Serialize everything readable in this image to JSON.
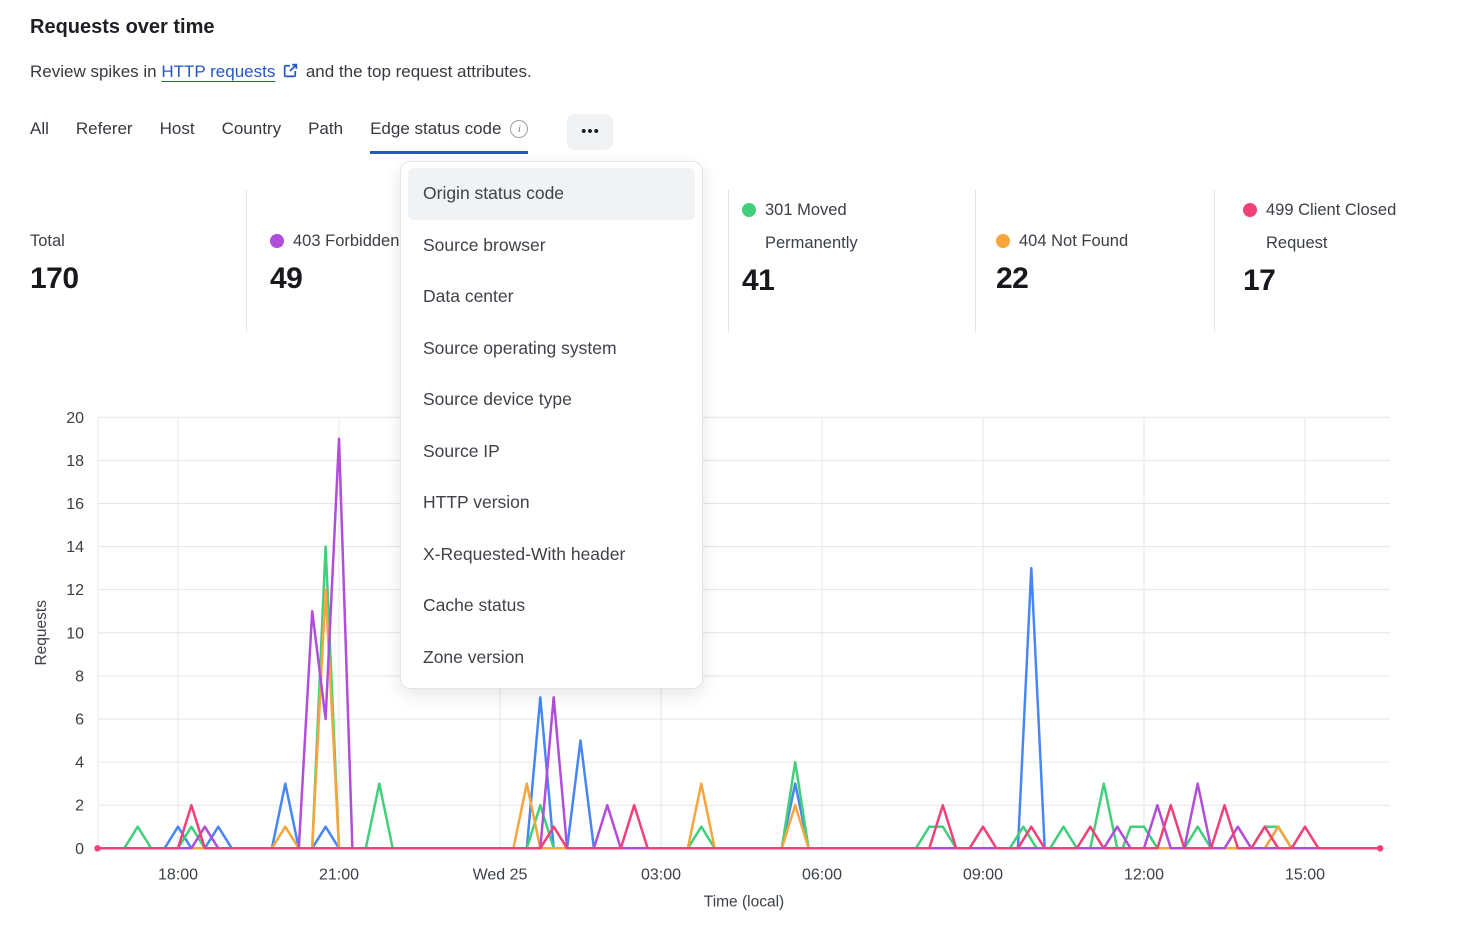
{
  "header": {
    "title": "Requests over time",
    "subtitle_prefix": "Review spikes in",
    "link_text": "HTTP requests",
    "subtitle_suffix": "and the top request attributes."
  },
  "icons": {
    "info": "i",
    "more": "•••",
    "external_link": "external-link"
  },
  "tabs": {
    "items": [
      {
        "label": "All",
        "active": false
      },
      {
        "label": "Referer",
        "active": false
      },
      {
        "label": "Host",
        "active": false
      },
      {
        "label": "Country",
        "active": false
      },
      {
        "label": "Path",
        "active": false
      },
      {
        "label": "Edge status code",
        "active": true
      }
    ]
  },
  "dropdown": {
    "highlighted_index": 0,
    "items": [
      "Origin status code",
      "Source browser",
      "Data center",
      "Source operating system",
      "Source device type",
      "Source IP",
      "HTTP version",
      "X-Requested-With header",
      "Cache status",
      "Zone version"
    ]
  },
  "stats": {
    "total": {
      "label": "Total",
      "value": "170"
    },
    "items": [
      {
        "label": "403 Forbidden",
        "value": "49",
        "color": "#b14ddb"
      },
      {
        "label": "301 Moved Permanently",
        "value": "41",
        "color": "#41cf7c"
      },
      {
        "label": "404 Not Found",
        "value": "22",
        "color": "#f7a53d"
      },
      {
        "label": "499 Client Closed Request",
        "value": "17",
        "color": "#ef4277"
      }
    ]
  },
  "chart_data": {
    "type": "line",
    "title": "Requests over time",
    "xlabel": "Time (local)",
    "ylabel": "Requests",
    "ylim": [
      0,
      20
    ],
    "y_tick_step": 2,
    "grid": true,
    "legend_position": "top-stats-row",
    "x_unit": "hours since Tue 00:00; 24+ = Wed 25",
    "x_domain": [
      16.55,
      40.35
    ],
    "x_ticks": [
      {
        "t": 18,
        "label": "18:00"
      },
      {
        "t": 21,
        "label": "21:00"
      },
      {
        "t": 24,
        "label": "Wed 25"
      },
      {
        "t": 27,
        "label": "03:00"
      },
      {
        "t": 30,
        "label": "06:00"
      },
      {
        "t": 33,
        "label": "09:00"
      },
      {
        "t": 36,
        "label": "12:00"
      },
      {
        "t": 39,
        "label": "15:00"
      }
    ],
    "series": [
      {
        "name": "blue-hidden",
        "label": "",
        "color": "#4787f3",
        "points": [
          [
            16.55,
            0
          ],
          [
            17.75,
            0
          ],
          [
            18,
            1
          ],
          [
            18.25,
            0
          ],
          [
            18.5,
            0
          ],
          [
            18.75,
            1
          ],
          [
            19,
            0
          ],
          [
            19.75,
            0
          ],
          [
            20,
            3
          ],
          [
            20.25,
            0
          ],
          [
            20.5,
            0
          ],
          [
            20.75,
            1
          ],
          [
            21,
            0
          ],
          [
            24.5,
            0
          ],
          [
            24.75,
            7
          ],
          [
            25,
            0
          ],
          [
            25.25,
            0
          ],
          [
            25.5,
            5
          ],
          [
            25.75,
            0
          ],
          [
            29.25,
            0
          ],
          [
            29.5,
            3
          ],
          [
            29.75,
            0
          ],
          [
            33.65,
            0
          ],
          [
            33.9,
            13
          ],
          [
            34.15,
            0
          ],
          [
            38.25,
            0
          ],
          [
            38.5,
            1
          ],
          [
            38.75,
            0
          ],
          [
            40.35,
            0
          ]
        ]
      },
      {
        "name": "301",
        "label": "301 Moved Permanently",
        "color": "#41cf7c",
        "points": [
          [
            16.55,
            0
          ],
          [
            17,
            0
          ],
          [
            17.25,
            1
          ],
          [
            17.5,
            0
          ],
          [
            18,
            0
          ],
          [
            18.25,
            1
          ],
          [
            18.5,
            0
          ],
          [
            20.5,
            0
          ],
          [
            20.75,
            14
          ],
          [
            21,
            0
          ],
          [
            21.5,
            0
          ],
          [
            21.75,
            3
          ],
          [
            22,
            0
          ],
          [
            24.5,
            0
          ],
          [
            24.75,
            2
          ],
          [
            25,
            0
          ],
          [
            27.5,
            0
          ],
          [
            27.75,
            1
          ],
          [
            28,
            0
          ],
          [
            29.25,
            0
          ],
          [
            29.5,
            4
          ],
          [
            29.75,
            0
          ],
          [
            31.75,
            0
          ],
          [
            32,
            1
          ],
          [
            32.25,
            1
          ],
          [
            32.5,
            0
          ],
          [
            33.5,
            0
          ],
          [
            33.75,
            1
          ],
          [
            34,
            0
          ],
          [
            34.25,
            0
          ],
          [
            34.5,
            1
          ],
          [
            34.75,
            0
          ],
          [
            35,
            0
          ],
          [
            35.25,
            3
          ],
          [
            35.5,
            0
          ],
          [
            35.6,
            0
          ],
          [
            35.75,
            1
          ],
          [
            36,
            1
          ],
          [
            36.25,
            0
          ],
          [
            36.75,
            0
          ],
          [
            37,
            1
          ],
          [
            37.25,
            0
          ],
          [
            38,
            0
          ],
          [
            38.25,
            1
          ],
          [
            38.5,
            1
          ],
          [
            38.75,
            0
          ],
          [
            40.35,
            0
          ]
        ]
      },
      {
        "name": "404",
        "label": "404 Not Found",
        "color": "#f7a53d",
        "points": [
          [
            16.55,
            0
          ],
          [
            19.75,
            0
          ],
          [
            20,
            1
          ],
          [
            20.25,
            0
          ],
          [
            20.5,
            0
          ],
          [
            20.75,
            12
          ],
          [
            21,
            0
          ],
          [
            24.25,
            0
          ],
          [
            24.5,
            3
          ],
          [
            24.75,
            0
          ],
          [
            27.5,
            0
          ],
          [
            27.75,
            3
          ],
          [
            28,
            0
          ],
          [
            29.25,
            0
          ],
          [
            29.5,
            2
          ],
          [
            29.75,
            0
          ],
          [
            38.25,
            0
          ],
          [
            38.5,
            1
          ],
          [
            38.75,
            0
          ],
          [
            40.35,
            0
          ]
        ]
      },
      {
        "name": "403",
        "label": "403 Forbidden",
        "color": "#b14ddb",
        "points": [
          [
            16.55,
            0
          ],
          [
            18.25,
            0
          ],
          [
            18.5,
            1
          ],
          [
            18.75,
            0
          ],
          [
            20.25,
            0
          ],
          [
            20.5,
            11
          ],
          [
            20.75,
            6
          ],
          [
            21,
            19
          ],
          [
            21.25,
            0
          ],
          [
            24.75,
            0
          ],
          [
            25,
            7
          ],
          [
            25.25,
            0
          ],
          [
            25.75,
            0
          ],
          [
            26,
            2
          ],
          [
            26.25,
            0
          ],
          [
            35.25,
            0
          ],
          [
            35.5,
            1
          ],
          [
            35.75,
            0
          ],
          [
            36,
            0
          ],
          [
            36.25,
            2
          ],
          [
            36.5,
            0
          ],
          [
            36.75,
            0
          ],
          [
            37,
            3
          ],
          [
            37.25,
            0
          ],
          [
            37.5,
            0
          ],
          [
            37.75,
            1
          ],
          [
            38,
            0
          ],
          [
            40.35,
            0
          ]
        ]
      },
      {
        "name": "499",
        "label": "499 Client Closed Request",
        "color": "#ef4277",
        "points": [
          [
            16.55,
            0
          ],
          [
            18,
            0
          ],
          [
            18.25,
            2
          ],
          [
            18.5,
            0
          ],
          [
            24.75,
            0
          ],
          [
            25,
            1
          ],
          [
            25.25,
            0
          ],
          [
            26.25,
            0
          ],
          [
            26.5,
            2
          ],
          [
            26.75,
            0
          ],
          [
            32,
            0
          ],
          [
            32.25,
            2
          ],
          [
            32.5,
            0
          ],
          [
            32.75,
            0
          ],
          [
            33,
            1
          ],
          [
            33.25,
            0
          ],
          [
            33.65,
            0
          ],
          [
            33.9,
            1
          ],
          [
            34.15,
            0
          ],
          [
            34.75,
            0
          ],
          [
            35,
            1
          ],
          [
            35.25,
            0
          ],
          [
            36.25,
            0
          ],
          [
            36.5,
            2
          ],
          [
            36.75,
            0
          ],
          [
            37.25,
            0
          ],
          [
            37.5,
            2
          ],
          [
            37.75,
            0
          ],
          [
            38,
            0
          ],
          [
            38.25,
            1
          ],
          [
            38.5,
            0
          ],
          [
            38.75,
            0
          ],
          [
            39,
            1
          ],
          [
            39.25,
            0
          ],
          [
            40.35,
            0
          ]
        ]
      }
    ],
    "endpoint_dots": {
      "color": "#ef4277",
      "t": [
        16.5,
        40.4
      ]
    }
  },
  "theme": {
    "accent_blue": "#2456c4",
    "grid_color": "#e5e6e9",
    "axis_text_color": "#3c4047"
  }
}
